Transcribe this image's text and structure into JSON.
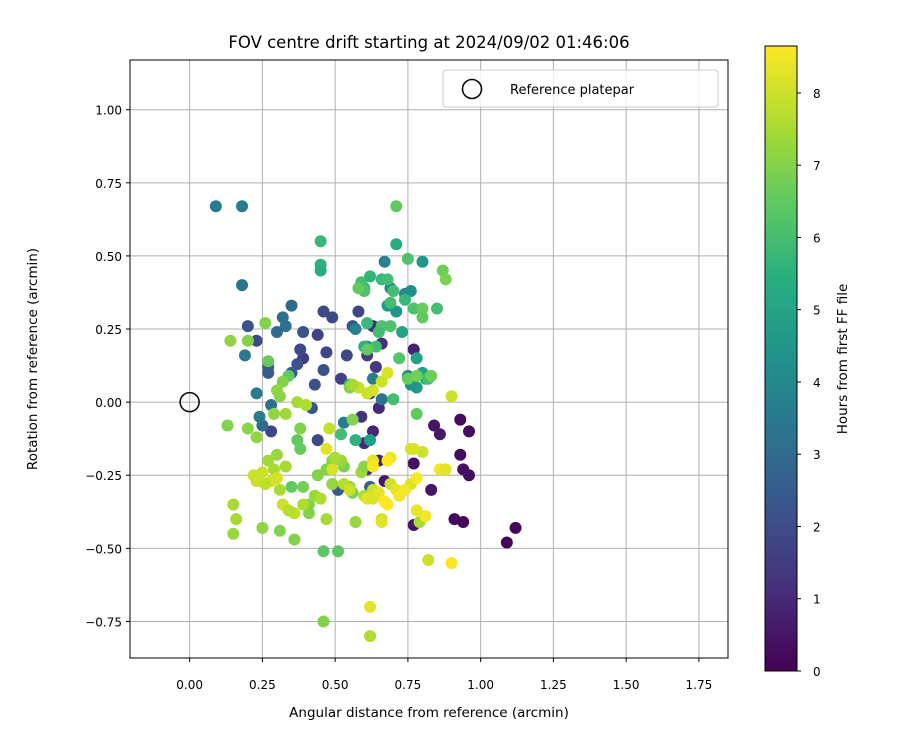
{
  "chart_data": {
    "type": "scatter",
    "title": "FOV centre drift starting at 2024/09/02 01:46:06",
    "xlabel": "Angular distance from reference (arcmin)",
    "ylabel": "Rotation from reference (arcmin)",
    "xlim": [
      -0.205,
      1.85
    ],
    "ylim": [
      -0.875,
      1.17
    ],
    "xticks": [
      0.0,
      0.25,
      0.5,
      0.75,
      1.0,
      1.25,
      1.5,
      1.75
    ],
    "xtick_labels": [
      "0.00",
      "0.25",
      "0.50",
      "0.75",
      "1.00",
      "1.25",
      "1.50",
      "1.75"
    ],
    "yticks": [
      -0.75,
      -0.5,
      -0.25,
      0.0,
      0.25,
      0.5,
      0.75,
      1.0
    ],
    "ytick_labels": [
      "−0.75",
      "−0.50",
      "−0.25",
      "0.00",
      "0.25",
      "0.50",
      "0.75",
      "1.00"
    ],
    "grid": true,
    "legend": {
      "position": "top-right",
      "entries": [
        "Reference platepar"
      ]
    },
    "reference_point": {
      "x": 0.0,
      "y": 0.0,
      "marker": "open-circle",
      "label": "Reference platepar"
    },
    "colorbar": {
      "label": "Hours from first FF file",
      "colormap": "viridis",
      "range": [
        0,
        8.65
      ],
      "ticks": [
        0,
        1,
        2,
        3,
        4,
        5,
        6,
        7,
        8
      ],
      "tick_labels": [
        "0",
        "1",
        "2",
        "3",
        "4",
        "5",
        "6",
        "7",
        "8"
      ]
    },
    "points": [
      [
        1.09,
        -0.48,
        0.1
      ],
      [
        1.12,
        -0.43,
        0.2
      ],
      [
        0.94,
        -0.41,
        0.2
      ],
      [
        0.91,
        -0.4,
        0.2
      ],
      [
        0.96,
        -0.25,
        0.3
      ],
      [
        0.94,
        -0.23,
        0.4
      ],
      [
        0.93,
        -0.18,
        0.3
      ],
      [
        0.96,
        -0.1,
        0.3
      ],
      [
        0.93,
        -0.06,
        0.3
      ],
      [
        0.84,
        -0.08,
        0.5
      ],
      [
        0.86,
        -0.11,
        0.6
      ],
      [
        0.83,
        -0.3,
        0.5
      ],
      [
        0.77,
        -0.42,
        0.5
      ],
      [
        0.77,
        -0.21,
        0.4
      ],
      [
        0.77,
        0.18,
        0.8
      ],
      [
        0.67,
        -0.27,
        0.6
      ],
      [
        0.65,
        -0.2,
        0.8
      ],
      [
        0.61,
        -0.23,
        1.2
      ],
      [
        0.6,
        -0.14,
        1.0
      ],
      [
        0.63,
        -0.1,
        0.9
      ],
      [
        0.65,
        -0.02,
        1.0
      ],
      [
        0.62,
        0.03,
        1.2
      ],
      [
        0.59,
        -0.05,
        1.3
      ],
      [
        0.64,
        0.12,
        1.4
      ],
      [
        0.61,
        0.16,
        1.5
      ],
      [
        0.66,
        0.2,
        1.2
      ],
      [
        0.63,
        0.26,
        1.1
      ],
      [
        0.58,
        0.31,
        1.8
      ],
      [
        0.56,
        0.26,
        2.1
      ],
      [
        0.54,
        0.16,
        1.9
      ],
      [
        0.52,
        0.08,
        1.7
      ],
      [
        0.49,
        0.29,
        1.9
      ],
      [
        0.47,
        0.17,
        1.8
      ],
      [
        0.46,
        0.31,
        2.0
      ],
      [
        0.44,
        0.23,
        1.7
      ],
      [
        0.46,
        0.11,
        2.2
      ],
      [
        0.44,
        -0.13,
        2.0
      ],
      [
        0.42,
        -0.02,
        2.3
      ],
      [
        0.43,
        0.06,
        2.1
      ],
      [
        0.39,
        0.15,
        1.6
      ],
      [
        0.38,
        0.18,
        1.9
      ],
      [
        0.37,
        0.13,
        2.2
      ],
      [
        0.35,
        0.1,
        2.4
      ],
      [
        0.39,
        0.24,
        2.2
      ],
      [
        0.35,
        0.33,
        3.0
      ],
      [
        0.33,
        0.26,
        3.3
      ],
      [
        0.32,
        0.29,
        3.1
      ],
      [
        0.3,
        0.24,
        3.0
      ],
      [
        0.27,
        0.12,
        2.7
      ],
      [
        0.27,
        0.1,
        2.5
      ],
      [
        0.28,
        -0.01,
        3.2
      ],
      [
        0.28,
        -0.1,
        1.8
      ],
      [
        0.25,
        -0.08,
        3.0
      ],
      [
        0.24,
        -0.05,
        3.6
      ],
      [
        0.23,
        0.03,
        3.5
      ],
      [
        0.2,
        0.26,
        2.2
      ],
      [
        0.23,
        0.21,
        2.0
      ],
      [
        0.19,
        0.16,
        3.5
      ],
      [
        0.18,
        0.4,
        3.3
      ],
      [
        0.09,
        0.67,
        3.6
      ],
      [
        0.18,
        0.67,
        3.6
      ],
      [
        0.51,
        -0.3,
        2.5
      ],
      [
        0.62,
        -0.29,
        2.7
      ],
      [
        0.53,
        -0.07,
        3.6
      ],
      [
        0.61,
        0.19,
        4.1
      ],
      [
        0.57,
        0.25,
        3.8
      ],
      [
        0.63,
        0.08,
        3.6
      ],
      [
        0.66,
        0.01,
        3.3
      ],
      [
        0.68,
        0.33,
        4.6
      ],
      [
        0.67,
        0.48,
        3.8
      ],
      [
        0.69,
        0.39,
        4.0
      ],
      [
        0.74,
        0.37,
        4.0
      ],
      [
        0.76,
        0.38,
        4.3
      ],
      [
        0.73,
        0.24,
        5.0
      ],
      [
        0.71,
        0.31,
        4.5
      ],
      [
        0.75,
        0.09,
        4.2
      ],
      [
        0.76,
        0.06,
        4.3
      ],
      [
        0.78,
        0.15,
        5.0
      ],
      [
        0.78,
        0.05,
        4.6
      ],
      [
        0.8,
        0.1,
        5.0
      ],
      [
        0.8,
        0.48,
        4.5
      ],
      [
        0.81,
        0.08,
        5.5
      ],
      [
        0.62,
        -0.13,
        4.8
      ],
      [
        0.57,
        -0.13,
        5.5
      ],
      [
        0.6,
        0.19,
        5.5
      ],
      [
        0.6,
        0.39,
        5.5
      ],
      [
        0.61,
        0.27,
        5.8
      ],
      [
        0.59,
        0.41,
        6.0
      ],
      [
        0.62,
        0.43,
        5.7
      ],
      [
        0.66,
        0.42,
        5.8
      ],
      [
        0.68,
        0.42,
        6.0
      ],
      [
        0.71,
        0.54,
        5.3
      ],
      [
        0.74,
        0.35,
        5.8
      ],
      [
        0.75,
        0.49,
        6.2
      ],
      [
        0.77,
        0.32,
        6.2
      ],
      [
        0.82,
        0.08,
        6.0
      ],
      [
        0.78,
        -0.04,
        6.5
      ],
      [
        0.7,
        0.01,
        6.0
      ],
      [
        0.66,
        0.26,
        6.2
      ],
      [
        0.64,
        0.19,
        6.0
      ],
      [
        0.55,
        0.06,
        5.7
      ],
      [
        0.52,
        -0.11,
        6.0
      ],
      [
        0.45,
        0.47,
        5.5
      ],
      [
        0.45,
        0.55,
        5.8
      ],
      [
        0.45,
        0.45,
        5.3
      ],
      [
        0.71,
        0.67,
        6.5
      ],
      [
        0.72,
        0.15,
        6.3
      ],
      [
        0.6,
        0.38,
        6.2
      ],
      [
        0.58,
        0.39,
        6.5
      ],
      [
        0.75,
        0.08,
        6.6
      ],
      [
        0.69,
        0.34,
        6.0
      ],
      [
        0.8,
        0.32,
        6.6
      ],
      [
        0.8,
        0.29,
        6.5
      ],
      [
        0.85,
        0.32,
        6.0
      ],
      [
        0.83,
        0.09,
        6.7
      ],
      [
        0.87,
        0.45,
        6.7
      ],
      [
        0.88,
        0.42,
        6.9
      ],
      [
        0.65,
        0.24,
        6.0
      ],
      [
        0.69,
        0.26,
        6.2
      ],
      [
        0.78,
        0.09,
        6.8
      ],
      [
        0.55,
        0.05,
        7.0
      ],
      [
        0.56,
        -0.06,
        7.0
      ],
      [
        0.46,
        -0.51,
        6.4
      ],
      [
        0.51,
        -0.51,
        6.4
      ],
      [
        0.46,
        -0.75,
        7.0
      ],
      [
        0.37,
        -0.13,
        6.5
      ],
      [
        0.38,
        -0.09,
        7.0
      ],
      [
        0.34,
        0.09,
        6.5
      ],
      [
        0.32,
        0.07,
        7.0
      ],
      [
        0.3,
        0.04,
        7.2
      ],
      [
        0.31,
        0.02,
        7.1
      ],
      [
        0.29,
        -0.04,
        7.2
      ],
      [
        0.33,
        -0.04,
        7.4
      ],
      [
        0.37,
        0.0,
        7.5
      ],
      [
        0.27,
        0.14,
        6.6
      ],
      [
        0.26,
        0.27,
        7.0
      ],
      [
        0.2,
        0.21,
        7.0
      ],
      [
        0.14,
        0.21,
        7.2
      ],
      [
        0.13,
        -0.08,
        7.0
      ],
      [
        0.2,
        -0.09,
        7.1
      ],
      [
        0.23,
        -0.12,
        7.2
      ],
      [
        0.27,
        -0.2,
        7.4
      ],
      [
        0.29,
        -0.23,
        7.5
      ],
      [
        0.33,
        -0.22,
        7.5
      ],
      [
        0.38,
        -0.16,
        6.6
      ],
      [
        0.35,
        -0.29,
        6.5
      ],
      [
        0.39,
        -0.29,
        6.8
      ],
      [
        0.41,
        -0.35,
        7.0
      ],
      [
        0.41,
        -0.38,
        7.0
      ],
      [
        0.43,
        -0.32,
        7.3
      ],
      [
        0.44,
        -0.25,
        7.0
      ],
      [
        0.47,
        -0.23,
        7.0
      ],
      [
        0.49,
        -0.2,
        7.0
      ],
      [
        0.53,
        -0.22,
        6.9
      ],
      [
        0.56,
        -0.31,
        6.9
      ],
      [
        0.57,
        -0.41,
        7.3
      ],
      [
        0.59,
        -0.24,
        7.4
      ],
      [
        0.6,
        -0.22,
        7.1
      ],
      [
        0.6,
        -0.32,
        7.6
      ],
      [
        0.63,
        -0.3,
        8.0
      ],
      [
        0.61,
        -0.33,
        8.3
      ],
      [
        0.63,
        -0.33,
        8.2
      ],
      [
        0.65,
        -0.31,
        8.3
      ],
      [
        0.66,
        -0.4,
        8.1
      ],
      [
        0.67,
        -0.34,
        8.6
      ],
      [
        0.69,
        -0.28,
        8.0
      ],
      [
        0.71,
        -0.3,
        8.3
      ],
      [
        0.72,
        -0.32,
        8.5
      ],
      [
        0.76,
        -0.28,
        8.2
      ],
      [
        0.76,
        -0.16,
        8.2
      ],
      [
        0.78,
        -0.26,
        8.6
      ],
      [
        0.78,
        -0.37,
        8.4
      ],
      [
        0.79,
        -0.41,
        7.5
      ],
      [
        0.81,
        -0.39,
        8.5
      ],
      [
        0.8,
        -0.17,
        8.0
      ],
      [
        0.86,
        -0.23,
        8.5
      ],
      [
        0.9,
        -0.55,
        8.6
      ],
      [
        0.82,
        -0.54,
        8.0
      ],
      [
        0.77,
        -0.16,
        8.2
      ],
      [
        0.69,
        -0.19,
        8.4
      ],
      [
        0.63,
        -0.2,
        8.3
      ],
      [
        0.62,
        -0.7,
        8.3
      ],
      [
        0.62,
        -0.8,
        7.6
      ],
      [
        0.66,
        -0.41,
        8.3
      ],
      [
        0.68,
        -0.35,
        8.7
      ],
      [
        0.9,
        0.02,
        8.0
      ],
      [
        0.68,
        0.1,
        8.2
      ],
      [
        0.66,
        0.07,
        8.0
      ],
      [
        0.63,
        0.04,
        8.1
      ],
      [
        0.61,
        0.03,
        8.0
      ],
      [
        0.58,
        0.05,
        7.9
      ],
      [
        0.56,
        0.06,
        7.5
      ],
      [
        0.52,
        -0.2,
        7.3
      ],
      [
        0.55,
        -0.29,
        7.2
      ],
      [
        0.49,
        -0.28,
        7.2
      ],
      [
        0.47,
        -0.16,
        8.3
      ],
      [
        0.49,
        -0.23,
        8.1
      ],
      [
        0.47,
        -0.4,
        7.5
      ],
      [
        0.45,
        -0.33,
        7.6
      ],
      [
        0.39,
        -0.35,
        7.6
      ],
      [
        0.36,
        -0.38,
        7.8
      ],
      [
        0.32,
        -0.35,
        8.0
      ],
      [
        0.34,
        -0.37,
        7.7
      ],
      [
        0.3,
        -0.26,
        8.1
      ],
      [
        0.28,
        -0.27,
        8.1
      ],
      [
        0.25,
        -0.24,
        8.0
      ],
      [
        0.23,
        -0.27,
        8.0
      ],
      [
        0.22,
        -0.25,
        8.0
      ],
      [
        0.26,
        -0.28,
        7.8
      ],
      [
        0.31,
        -0.3,
        7.5
      ],
      [
        0.31,
        -0.44,
        7.0
      ],
      [
        0.25,
        -0.43,
        7.2
      ],
      [
        0.16,
        -0.4,
        7.5
      ],
      [
        0.15,
        -0.35,
        7.5
      ],
      [
        0.15,
        -0.45,
        7.3
      ],
      [
        0.36,
        -0.47,
        7.0
      ],
      [
        0.3,
        -0.18,
        7.3
      ],
      [
        0.4,
        -0.01,
        7.6
      ],
      [
        0.48,
        -0.09,
        7.9
      ],
      [
        0.5,
        -0.19,
        7.5
      ],
      [
        0.53,
        -0.28,
        7.7
      ],
      [
        0.55,
        -0.3,
        8.0
      ],
      [
        0.63,
        -0.22,
        8.6
      ],
      [
        0.68,
        -0.2,
        8.7
      ],
      [
        0.74,
        -0.3,
        8.5
      ],
      [
        0.88,
        -0.23,
        8.3
      ],
      [
        0.61,
        0.18,
        6.5
      ],
      [
        0.7,
        0.38,
        6.0
      ]
    ]
  }
}
